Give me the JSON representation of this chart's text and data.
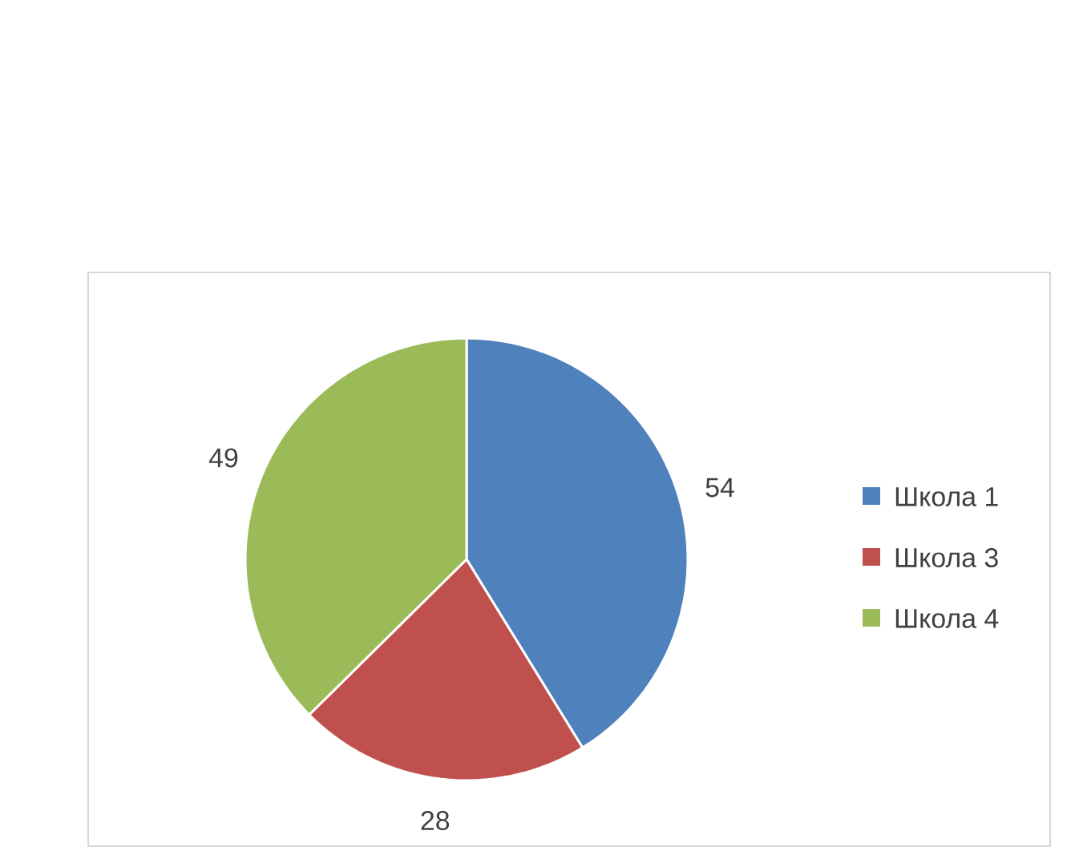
{
  "chart_data": {
    "type": "pie",
    "categories": [
      "Школа 1",
      "Школа 3",
      "Школа 4"
    ],
    "values": [
      54,
      28,
      49
    ],
    "colors": [
      "#4f81bd",
      "#c0504d",
      "#9bbb59"
    ],
    "data_labels": true,
    "legend": "right"
  }
}
